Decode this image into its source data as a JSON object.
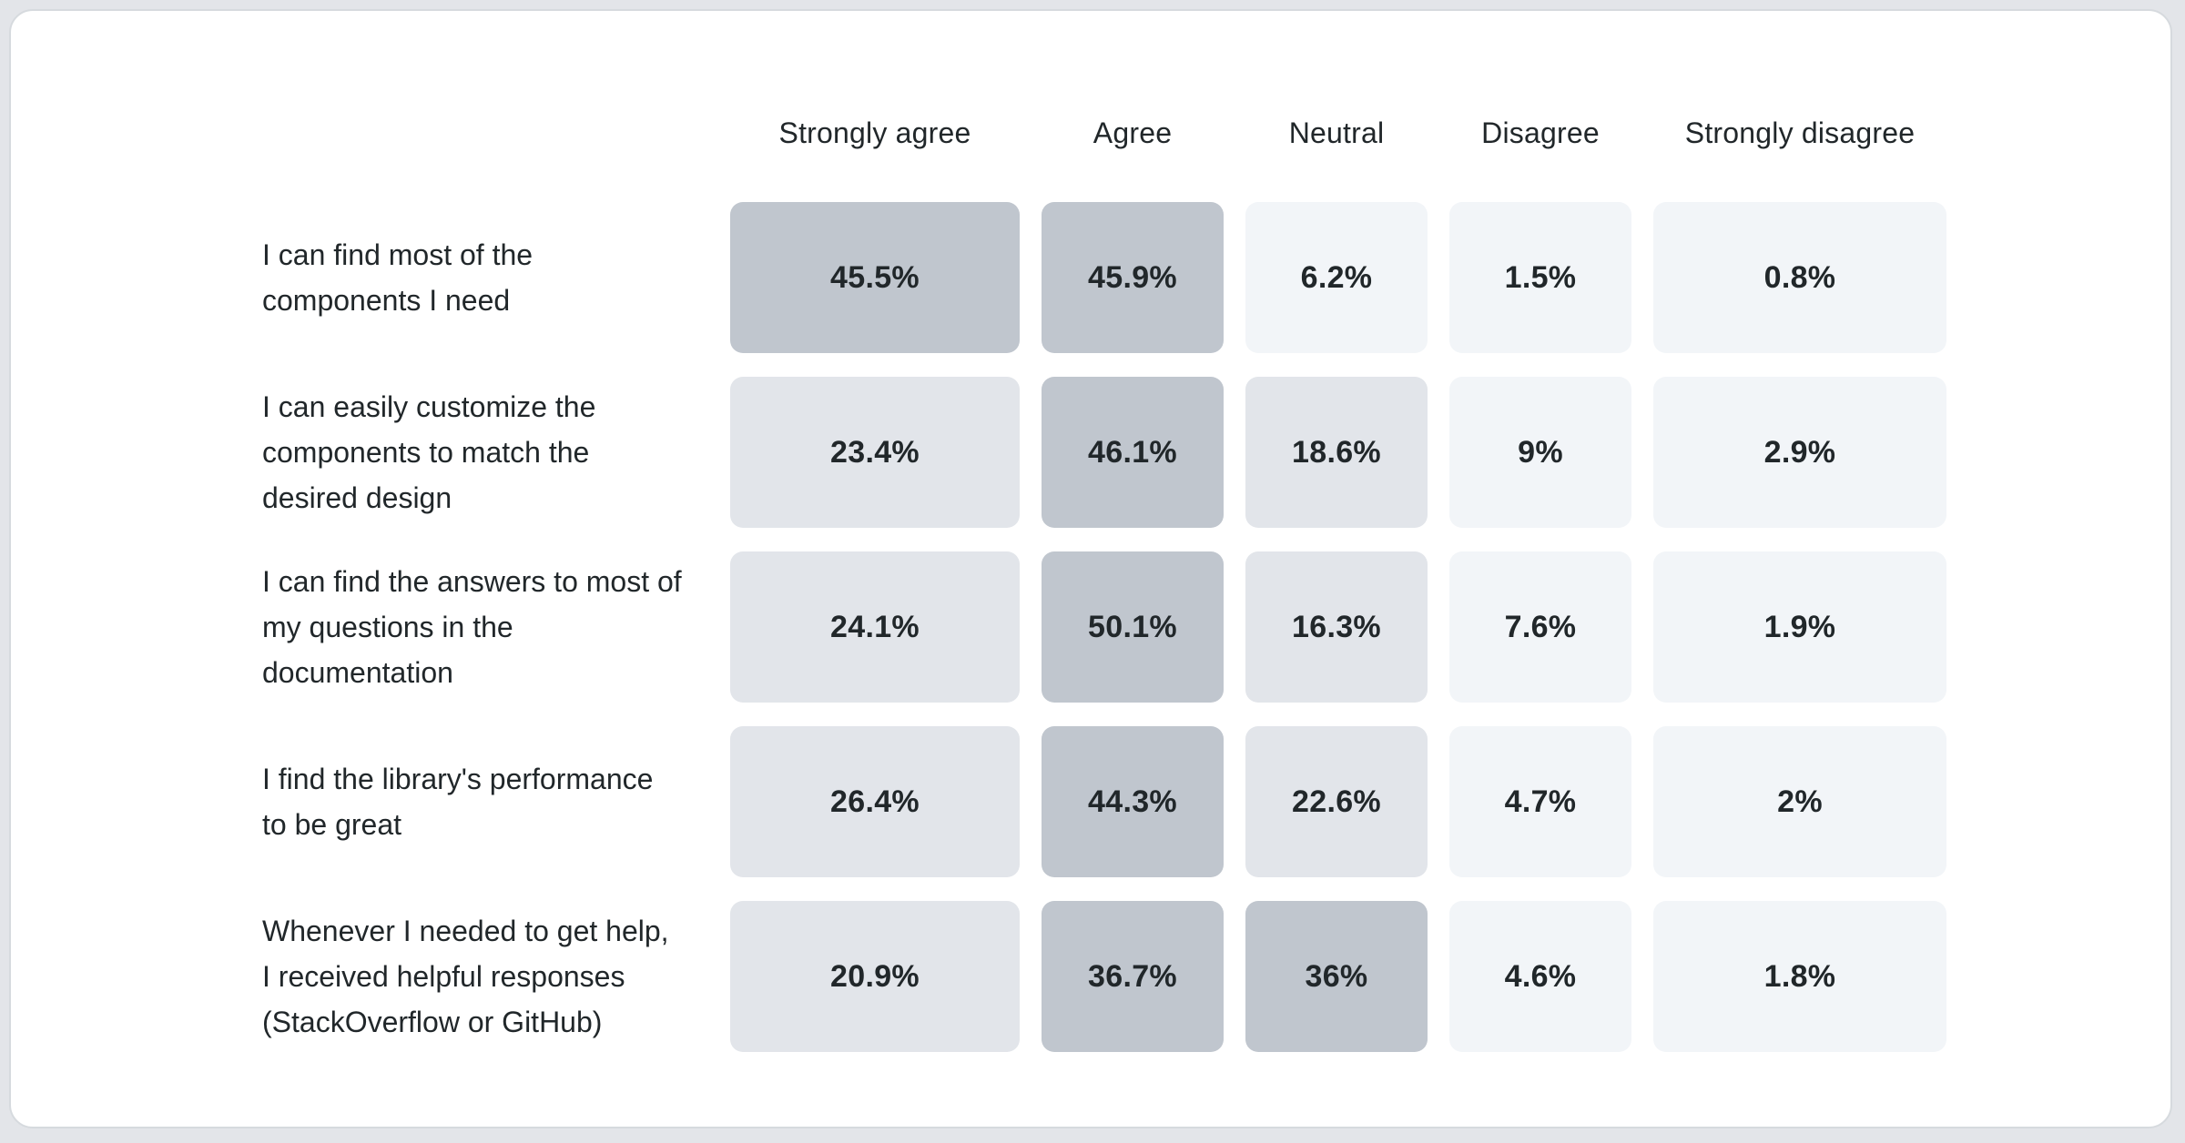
{
  "colors": {
    "page_bg": "#e3e5e9",
    "card_bg": "#ffffff",
    "card_border": "#d6dade",
    "text": "#21272a",
    "cell_high": "#c0c6ce",
    "cell_mid": "#e2e5ea",
    "cell_low": "#f2f5f8"
  },
  "chart_data": {
    "type": "heatmap",
    "columns": [
      "Strongly agree",
      "Agree",
      "Neutral",
      "Disagree",
      "Strongly disagree"
    ],
    "rows": [
      {
        "label": "I can find most of the components I need",
        "values": [
          45.5,
          45.9,
          6.2,
          1.5,
          0.8
        ],
        "display": [
          "45.5%",
          "45.9%",
          "6.2%",
          "1.5%",
          "0.8%"
        ]
      },
      {
        "label": "I can easily customize the components to match the desired design",
        "values": [
          23.4,
          46.1,
          18.6,
          9,
          2.9
        ],
        "display": [
          "23.4%",
          "46.1%",
          "18.6%",
          "9%",
          "2.9%"
        ]
      },
      {
        "label": "I can find the answers to most of my questions in the documentation",
        "values": [
          24.1,
          50.1,
          16.3,
          7.6,
          1.9
        ],
        "display": [
          "24.1%",
          "50.1%",
          "16.3%",
          "7.6%",
          "1.9%"
        ]
      },
      {
        "label": "I find the library's performance to be great",
        "values": [
          26.4,
          44.3,
          22.6,
          4.7,
          2
        ],
        "display": [
          "26.4%",
          "44.3%",
          "22.6%",
          "4.7%",
          "2%"
        ]
      },
      {
        "label": "Whenever I needed to get help, I received helpful responses (StackOverflow or GitHub)",
        "values": [
          20.9,
          36.7,
          36,
          4.6,
          1.8
        ],
        "display": [
          "20.9%",
          "36.7%",
          "36%",
          "4.6%",
          "1.8%"
        ]
      }
    ],
    "color_scale": {
      "type": "threshold",
      "bins": [
        {
          "min": 30,
          "color_key": "cell_high"
        },
        {
          "min": 10,
          "color_key": "cell_mid"
        },
        {
          "min": 0,
          "color_key": "cell_low"
        }
      ]
    },
    "legend": "none",
    "grid": false
  }
}
